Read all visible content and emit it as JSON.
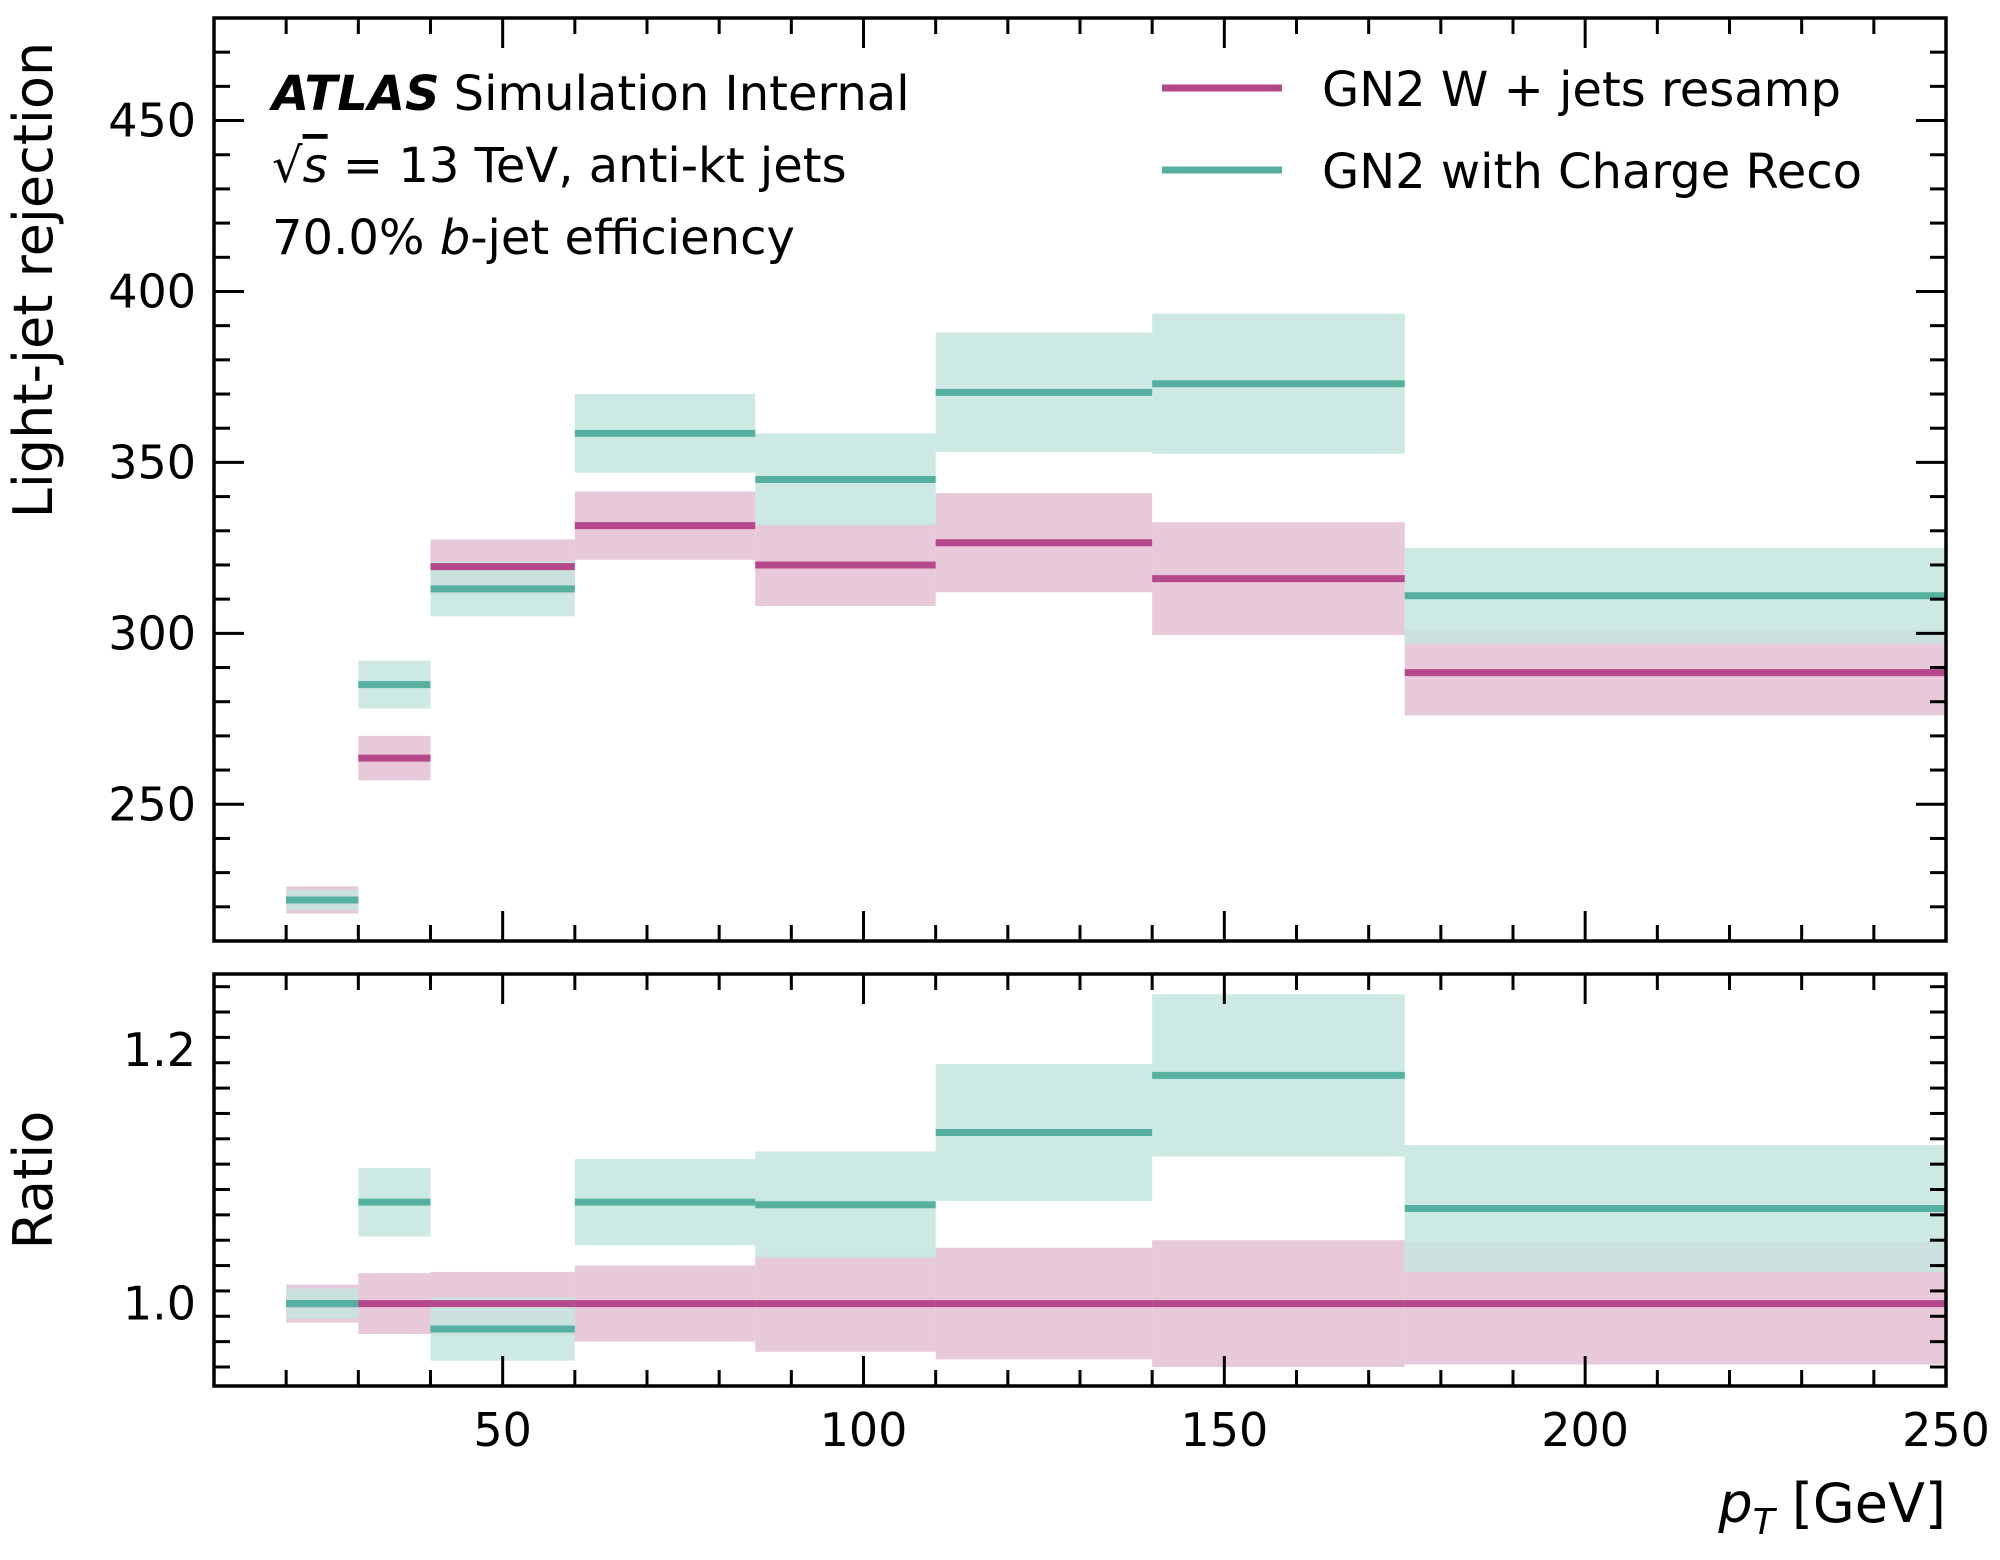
{
  "chart_data": {
    "type": "step-band",
    "annotations": {
      "experiment": "ATLAS",
      "experiment_suffix": "Simulation Internal",
      "energy_sqrt": "√",
      "energy_s": "s",
      "energy_rest": " = 13 TeV, anti-kt jets",
      "efficiency_value": "70.0% ",
      "efficiency_b": "b",
      "efficiency_rest": "-jet efficiency"
    },
    "xlabel_symbol": "p",
    "xlabel_sub": "T",
    "xlabel_unit": " [GeV]",
    "xlim": [
      10,
      250
    ],
    "xticks": [
      50,
      100,
      150,
      200,
      250
    ],
    "top": {
      "ylabel": "Light-jet rejection",
      "ylim": [
        210,
        480
      ],
      "yticks": [
        250,
        300,
        350,
        400,
        450
      ]
    },
    "bottom": {
      "ylabel": "Ratio",
      "ylim": [
        0.935,
        1.26
      ],
      "yticks": [
        "1.0",
        "1.2"
      ]
    },
    "bins": [
      [
        20,
        30
      ],
      [
        30,
        40
      ],
      [
        40,
        60
      ],
      [
        60,
        85
      ],
      [
        85,
        110
      ],
      [
        110,
        140
      ],
      [
        140,
        175
      ],
      [
        175,
        250
      ]
    ],
    "series": [
      {
        "name": "GN2 W + jets resamp",
        "color": "#b5478a",
        "band_color": "#e3bfd4",
        "values": [
          222,
          263.5,
          319.5,
          331.5,
          320,
          326.5,
          316,
          288.5
        ],
        "errors": [
          4,
          6.5,
          8,
          10,
          12,
          14.5,
          16.5,
          12.5
        ],
        "ratio": [
          1.0,
          1.0,
          1.0,
          1.0,
          1.0,
          1.0,
          1.0,
          1.0
        ],
        "ratio_errors": [
          0.015,
          0.024,
          0.025,
          0.03,
          0.038,
          0.044,
          0.05,
          0.048
        ]
      },
      {
        "name": "GN2 with Charge Reco",
        "color": "#56b09f",
        "band_color": "#c4e5df",
        "values": [
          222,
          285,
          313,
          358.5,
          345,
          370.5,
          373,
          311
        ],
        "errors": [
          3,
          7,
          8,
          11.5,
          13.5,
          17.5,
          20.5,
          14
        ],
        "ratio": [
          1.0,
          1.08,
          0.98,
          1.08,
          1.078,
          1.135,
          1.18,
          1.075
        ],
        "ratio_errors": [
          0.012,
          0.027,
          0.025,
          0.034,
          0.042,
          0.054,
          0.064,
          0.05
        ]
      }
    ]
  }
}
